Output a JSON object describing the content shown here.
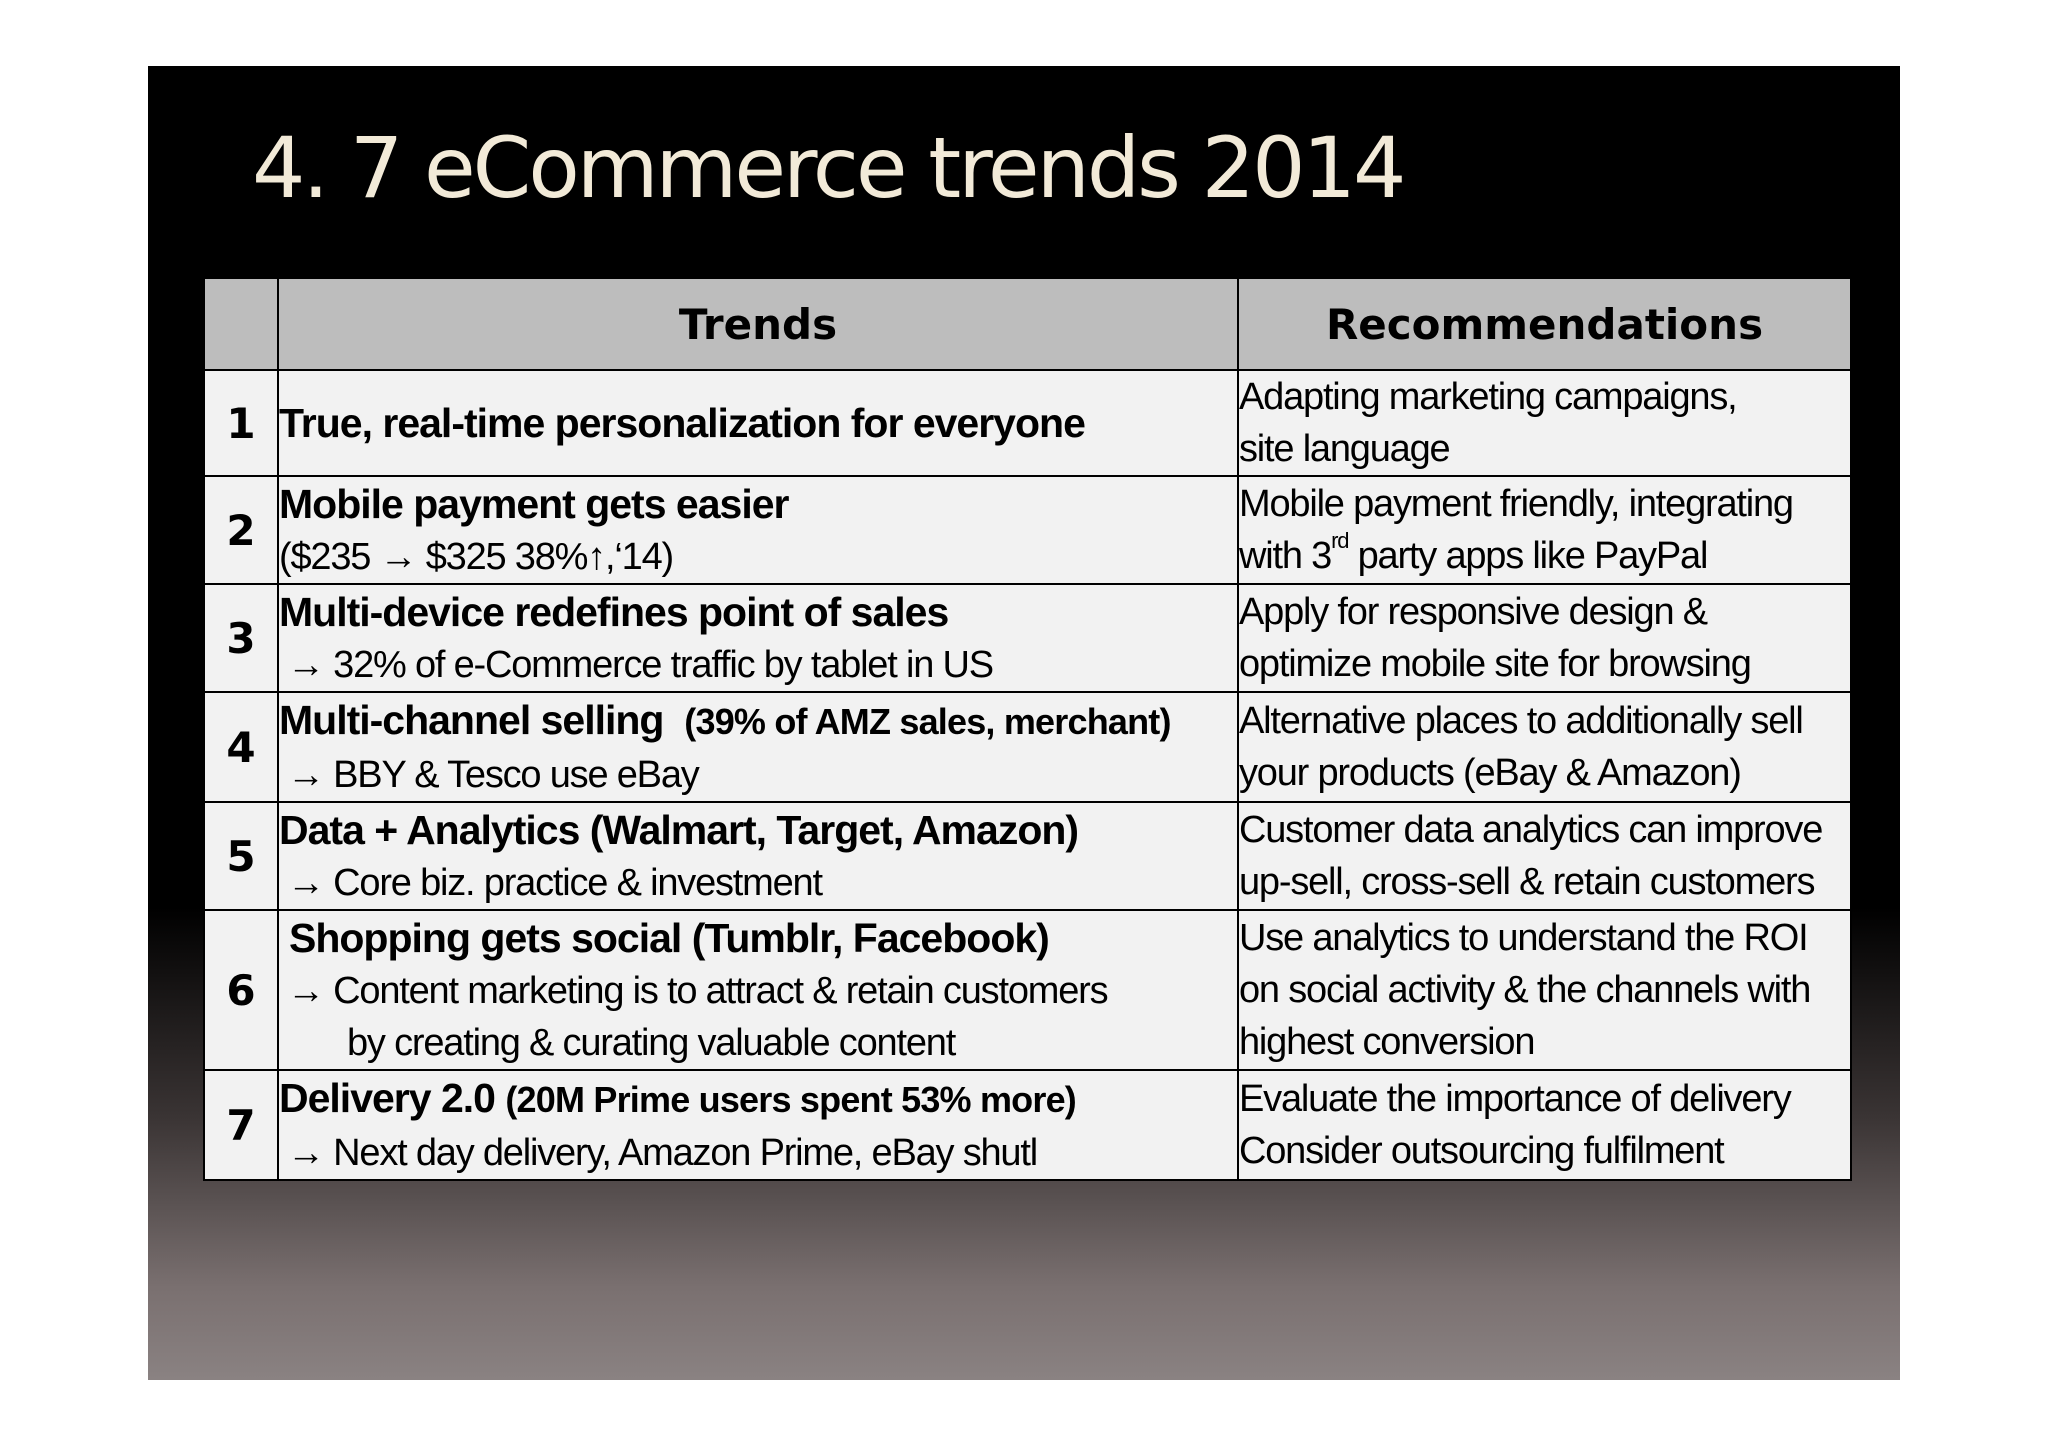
{
  "slide": {
    "title": "4. 7 eCommerce trends 2014"
  },
  "table": {
    "headers": {
      "number": "",
      "trends": "Trends",
      "recommendations": "Recommendations"
    },
    "rows": [
      {
        "number": "1",
        "trend": "True, real-time personalization for everyone",
        "recommendation": [
          "Adapting marketing campaigns,",
          "site language"
        ]
      },
      {
        "number": "2",
        "trend": "Mobile payment gets easier",
        "detail": "($235 → $325 38%↑,‘14)",
        "recommendation": [
          "Mobile payment friendly, integrating"
        ],
        "rec_line2_a": "with 3",
        "rec_line2_sup": "rd",
        "rec_line2_b": " party apps like PayPal"
      },
      {
        "number": "3",
        "trend": "Multi-device redefines point of sales",
        "detail": "→ 32% of e-Commerce traffic by tablet in US",
        "recommendation": [
          "Apply for responsive design &",
          "optimize mobile site for browsing"
        ]
      },
      {
        "number": "4",
        "trend": "Multi-channel selling",
        "trend_note": "(39% of AMZ sales, merchant)",
        "detail": "→ BBY & Tesco use eBay",
        "recommendation": [
          "Alternative places to additionally sell",
          "your products (eBay & Amazon)"
        ]
      },
      {
        "number": "5",
        "trend": "Data + Analytics (Walmart, Target, Amazon)",
        "detail": "→ Core biz. practice & investment",
        "recommendation": [
          "Customer data analytics can improve",
          "up-sell, cross-sell & retain customers"
        ]
      },
      {
        "number": "6",
        "trend": "Shopping gets social (Tumblr, Facebook)",
        "detail": "→ Content marketing is to attract & retain customers",
        "detail2": "by creating & curating valuable content",
        "recommendation": [
          "Use analytics to understand the ROI",
          "on social activity & the channels with",
          "highest conversion"
        ]
      },
      {
        "number": "7",
        "trend": "Delivery 2.0",
        "trend_note": "(20M Prime users spent 53% more)",
        "detail": "→ Next day delivery, Amazon Prime, eBay shutl",
        "recommendation": [
          "Evaluate the importance of delivery",
          "Consider outsourcing fulfilment"
        ]
      }
    ]
  }
}
